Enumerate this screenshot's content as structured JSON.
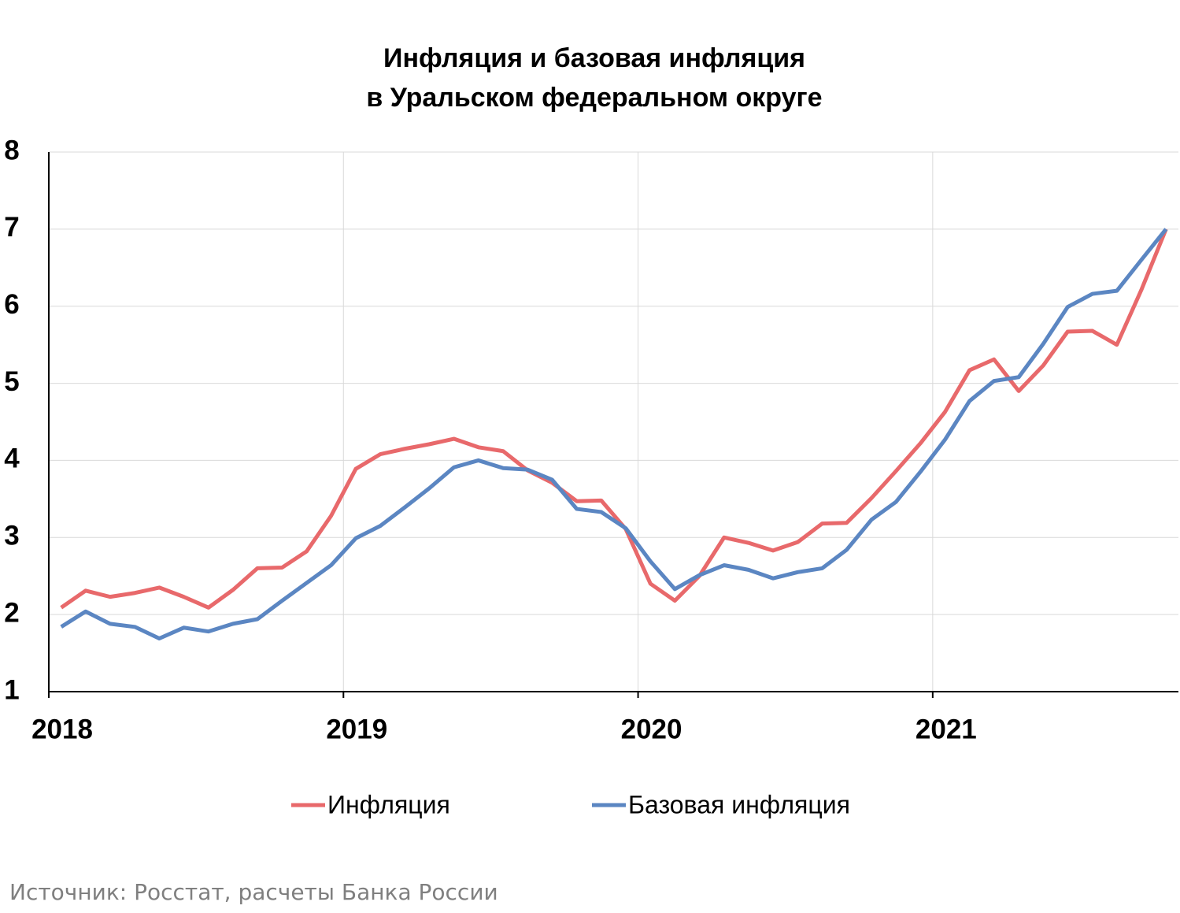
{
  "chart_data": {
    "type": "line",
    "title": [
      "Инфляция и базовая инфляция",
      "в  Уральском федеральном округе"
    ],
    "source": "Источник: Росстат, расчеты Банка России",
    "x": [
      2018.042,
      2018.125,
      2018.208,
      2018.292,
      2018.375,
      2018.458,
      2018.542,
      2018.625,
      2018.708,
      2018.792,
      2018.875,
      2018.958,
      2019.042,
      2019.125,
      2019.208,
      2019.292,
      2019.375,
      2019.458,
      2019.542,
      2019.625,
      2019.708,
      2019.792,
      2019.875,
      2019.958,
      2020.042,
      2020.125,
      2020.208,
      2020.292,
      2020.375,
      2020.458,
      2020.542,
      2020.625,
      2020.708,
      2020.792,
      2020.875,
      2020.958,
      2021.042,
      2021.125,
      2021.208,
      2021.292,
      2021.375,
      2021.458,
      2021.542,
      2021.625,
      2021.708,
      2021.792
    ],
    "series": [
      {
        "name": "Инфляция",
        "color": "#e8696b",
        "values": [
          2.09,
          2.31,
          2.23,
          2.28,
          2.35,
          2.23,
          2.09,
          2.32,
          2.6,
          2.61,
          2.82,
          3.28,
          3.89,
          4.08,
          4.15,
          4.21,
          4.28,
          4.17,
          4.12,
          3.87,
          3.71,
          3.47,
          3.48,
          3.11,
          2.4,
          2.18,
          2.5,
          3.0,
          2.93,
          2.83,
          2.94,
          3.18,
          3.19,
          3.51,
          3.86,
          4.22,
          4.63,
          5.17,
          5.31,
          4.9,
          5.23,
          5.67,
          5.68,
          5.5,
          6.21,
          7.0
        ]
      },
      {
        "name": "Базовая инфляция",
        "color": "#5b86c2",
        "values": [
          1.84,
          2.04,
          1.88,
          1.84,
          1.69,
          1.83,
          1.78,
          1.88,
          1.94,
          2.18,
          2.41,
          2.64,
          2.99,
          3.15,
          3.39,
          3.64,
          3.91,
          4.0,
          3.9,
          3.88,
          3.75,
          3.37,
          3.33,
          3.12,
          2.69,
          2.33,
          2.51,
          2.64,
          2.58,
          2.47,
          2.55,
          2.6,
          2.84,
          3.23,
          3.46,
          3.85,
          4.27,
          4.77,
          5.03,
          5.08,
          5.51,
          5.99,
          6.16,
          6.2,
          6.6,
          7.0
        ]
      }
    ],
    "xlim": [
      2018,
      2021.834
    ],
    "xticks": [
      2018,
      2019,
      2020,
      2021
    ],
    "ylim": [
      1,
      8
    ],
    "yticks": [
      1,
      2,
      3,
      4,
      5,
      6,
      7,
      8
    ],
    "grid": true,
    "legend": "bottom"
  }
}
